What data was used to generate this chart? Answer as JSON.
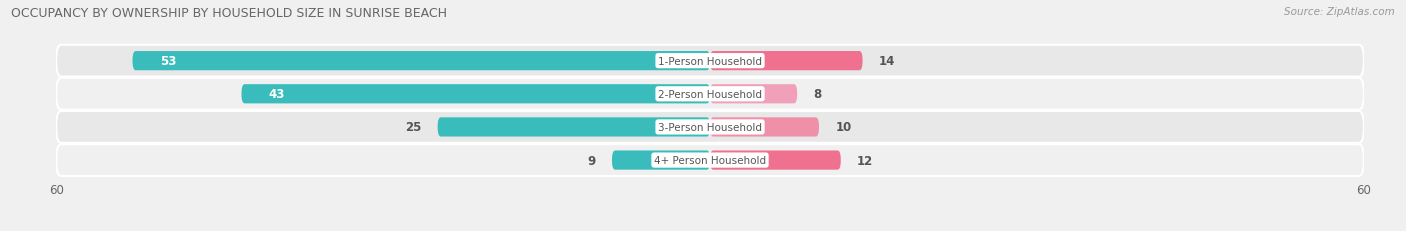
{
  "title": "OCCUPANCY BY OWNERSHIP BY HOUSEHOLD SIZE IN SUNRISE BEACH",
  "source": "Source: ZipAtlas.com",
  "categories": [
    "1-Person Household",
    "2-Person Household",
    "3-Person Household",
    "4+ Person Household"
  ],
  "owner_values": [
    53,
    43,
    25,
    9
  ],
  "renter_values": [
    14,
    8,
    10,
    12
  ],
  "owner_color": "#3bbcbc",
  "renter_colors": [
    "#f07090",
    "#f0a0b8",
    "#f090a8",
    "#f07090"
  ],
  "axis_max": 60,
  "background_color": "#f0f0f0",
  "row_colors": [
    "#e8e8e8",
    "#f0f0f0",
    "#e8e8e8",
    "#f0f0f0"
  ],
  "title_fontsize": 9,
  "bar_label_fontsize": 8.5,
  "axis_label_fontsize": 8.5,
  "legend_fontsize": 8.5,
  "bar_height": 0.58,
  "cat_label_fontsize": 7.5
}
